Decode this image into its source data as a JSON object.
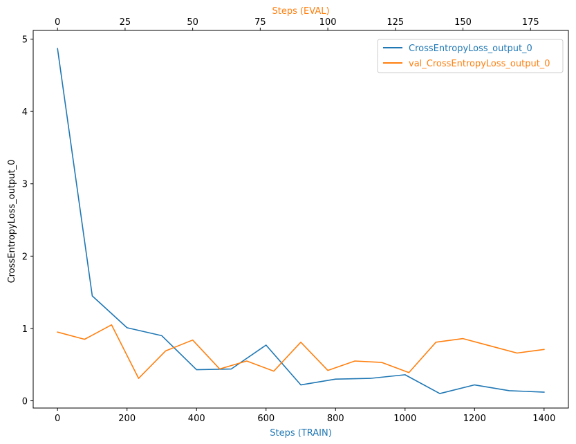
{
  "colors": {
    "train": "#1f77b4",
    "eval": "#ff7f0e",
    "axis": "#000000"
  },
  "chart_data": {
    "type": "line",
    "title": "",
    "ylabel": "CrossEntropyLoss_output_0",
    "bottom_axis": {
      "label": "Steps (TRAIN)",
      "range": [
        -70,
        1470
      ],
      "ticks": [
        0,
        200,
        400,
        600,
        800,
        1000,
        1200,
        1400
      ],
      "tick_labels": [
        "0",
        "200",
        "400",
        "600",
        "800",
        "1000",
        "1200",
        "1400"
      ]
    },
    "top_axis": {
      "label": "Steps (EVAL)",
      "range": [
        -9,
        189
      ],
      "ticks": [
        0,
        25,
        50,
        75,
        100,
        125,
        150,
        175
      ],
      "tick_labels": [
        "0",
        "25",
        "50",
        "75",
        "100",
        "125",
        "150",
        "175"
      ]
    },
    "y_axis": {
      "range": [
        -0.1,
        5.12
      ],
      "ticks": [
        0,
        1,
        2,
        3,
        4,
        5
      ],
      "tick_labels": [
        "0",
        "1",
        "2",
        "3",
        "4",
        "5"
      ]
    },
    "legend": {
      "position": "top-right",
      "entries": [
        "CrossEntropyLoss_output_0",
        "val_CrossEntropyLoss_output_0"
      ]
    },
    "series": [
      {
        "name": "CrossEntropyLoss_output_0",
        "axis": "bottom",
        "x": [
          0,
          100,
          200,
          300,
          400,
          500,
          600,
          700,
          800,
          900,
          1000,
          1100,
          1200,
          1300,
          1400
        ],
        "y": [
          4.87,
          1.45,
          1.01,
          0.9,
          0.43,
          0.44,
          0.77,
          0.22,
          0.3,
          0.31,
          0.36,
          0.1,
          0.22,
          0.14,
          0.12
        ]
      },
      {
        "name": "val_CrossEntropyLoss_output_0",
        "axis": "top",
        "x": [
          0,
          10,
          20,
          30,
          40,
          50,
          60,
          70,
          80,
          90,
          100,
          110,
          120,
          130,
          140,
          150,
          160,
          170,
          180
        ],
        "y": [
          0.95,
          0.85,
          1.05,
          0.31,
          0.69,
          0.84,
          0.44,
          0.55,
          0.41,
          0.81,
          0.42,
          0.55,
          0.53,
          0.39,
          0.81,
          0.86,
          0.76,
          0.66,
          0.71
        ]
      }
    ]
  }
}
